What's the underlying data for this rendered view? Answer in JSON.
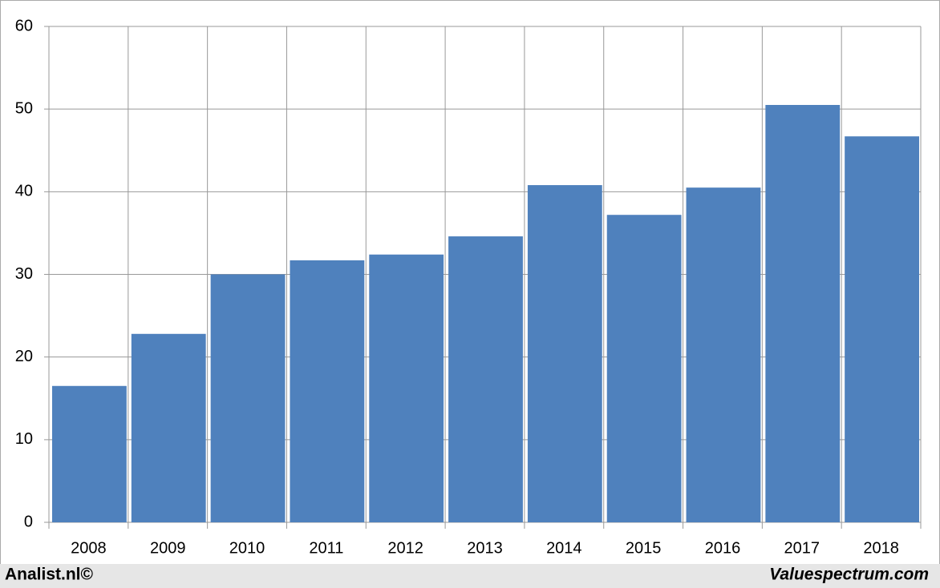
{
  "chart_data": {
    "type": "bar",
    "categories": [
      "2008",
      "2009",
      "2010",
      "2011",
      "2012",
      "2013",
      "2014",
      "2015",
      "2016",
      "2017",
      "2018"
    ],
    "values": [
      16.5,
      22.8,
      30.0,
      31.7,
      32.4,
      34.6,
      40.8,
      37.2,
      40.5,
      50.5,
      46.7
    ],
    "color": "#4f81bd",
    "ylim": [
      0,
      60
    ],
    "yticks": [
      0,
      10,
      20,
      30,
      40,
      50,
      60
    ],
    "grid": true
  },
  "footer": {
    "left": "Analist.nl©",
    "right": "Valuespectrum.com"
  }
}
